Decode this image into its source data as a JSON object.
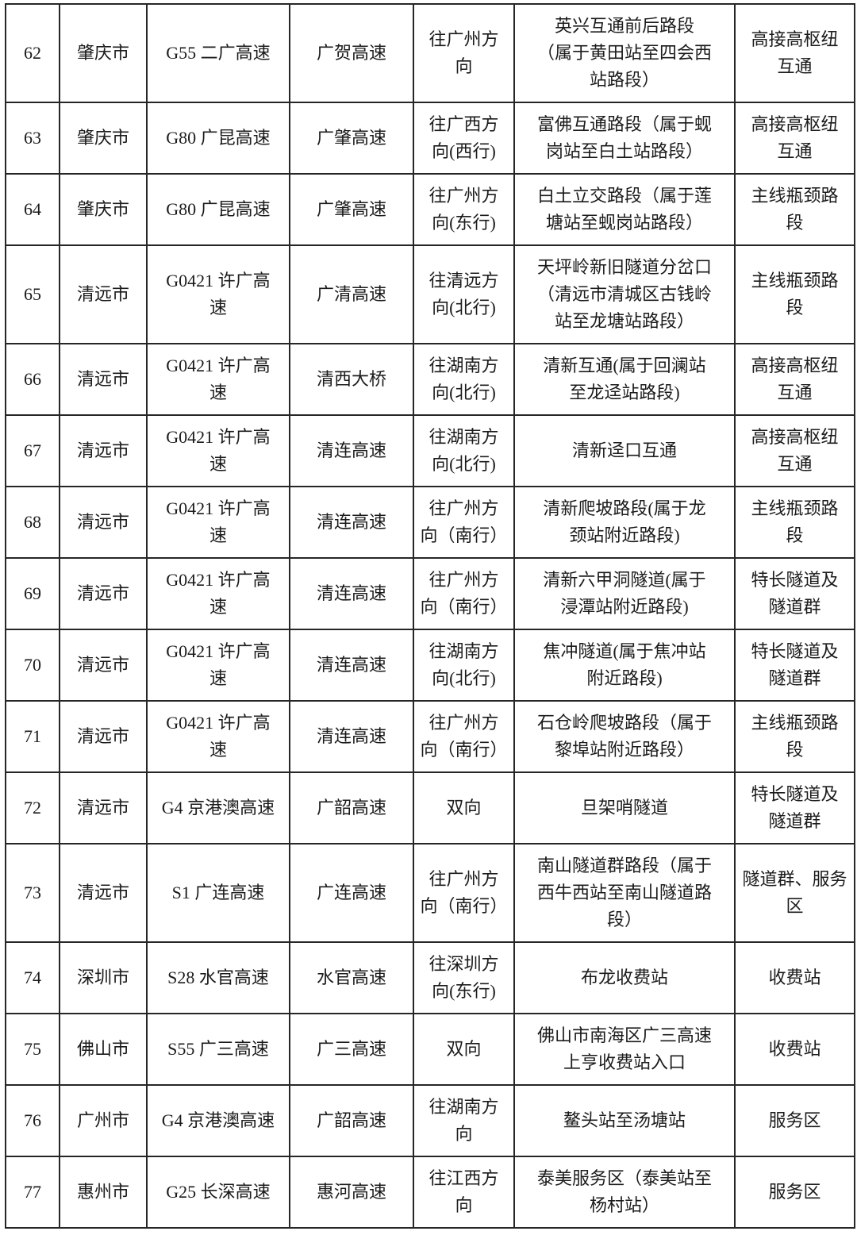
{
  "colors": {
    "border": "#262626",
    "text": "#1b1b1b",
    "background": "#ffffff"
  },
  "table": {
    "rows": [
      {
        "no": "62",
        "city": "肇庆市",
        "highway": "G55 二广高速",
        "road": "广贺高速",
        "direction": "往广州方\n向",
        "location": "英兴互通前后路段\n（属于黄田站至四会西\n站路段）",
        "type": "高接高枢纽\n互通"
      },
      {
        "no": "63",
        "city": "肇庆市",
        "highway": "G80 广昆高速",
        "road": "广肇高速",
        "direction": "往广西方\n向(西行)",
        "location": "富佛互通路段（属于蚬\n岗站至白土站路段）",
        "type": "高接高枢纽\n互通"
      },
      {
        "no": "64",
        "city": "肇庆市",
        "highway": "G80 广昆高速",
        "road": "广肇高速",
        "direction": "往广州方\n向(东行)",
        "location": "白土立交路段（属于莲\n塘站至蚬岗站路段）",
        "type": "主线瓶颈路\n段"
      },
      {
        "no": "65",
        "city": "清远市",
        "highway": "G0421 许广高\n速",
        "road": "广清高速",
        "direction": "往清远方\n向(北行)",
        "location": "天坪岭新旧隧道分岔口\n（清远市清城区古钱岭\n站至龙塘站路段）",
        "type": "主线瓶颈路\n段"
      },
      {
        "no": "66",
        "city": "清远市",
        "highway": "G0421 许广高\n速",
        "road": "清西大桥",
        "direction": "往湖南方\n向(北行)",
        "location": "清新互通(属于回澜站\n至龙迳站路段)",
        "type": "高接高枢纽\n互通"
      },
      {
        "no": "67",
        "city": "清远市",
        "highway": "G0421 许广高\n速",
        "road": "清连高速",
        "direction": "往湖南方\n向(北行)",
        "location": "清新迳口互通",
        "type": "高接高枢纽\n互通"
      },
      {
        "no": "68",
        "city": "清远市",
        "highway": "G0421 许广高\n速",
        "road": "清连高速",
        "direction": "往广州方\n向（南行）",
        "location": "清新爬坡路段(属于龙\n颈站附近路段)",
        "type": "主线瓶颈路\n段"
      },
      {
        "no": "69",
        "city": "清远市",
        "highway": "G0421 许广高\n速",
        "road": "清连高速",
        "direction": "往广州方\n向（南行）",
        "location": "清新六甲洞隧道(属于\n浸潭站附近路段)",
        "type": "特长隧道及\n隧道群"
      },
      {
        "no": "70",
        "city": "清远市",
        "highway": "G0421 许广高\n速",
        "road": "清连高速",
        "direction": "往湖南方\n向(北行)",
        "location": "焦冲隧道(属于焦冲站\n附近路段)",
        "type": "特长隧道及\n隧道群"
      },
      {
        "no": "71",
        "city": "清远市",
        "highway": "G0421 许广高\n速",
        "road": "清连高速",
        "direction": "往广州方\n向（南行）",
        "location": "石仓岭爬坡路段（属于\n黎埠站附近路段）",
        "type": "主线瓶颈路\n段"
      },
      {
        "no": "72",
        "city": "清远市",
        "highway": "G4 京港澳高速",
        "road": "广韶高速",
        "direction": "双向",
        "location": "旦架哨隧道",
        "type": "特长隧道及\n隧道群"
      },
      {
        "no": "73",
        "city": "清远市",
        "highway": "S1 广连高速",
        "road": "广连高速",
        "direction": "往广州方\n向（南行）",
        "location": "南山隧道群路段（属于\n西牛西站至南山隧道路\n段）",
        "type": "隧道群、服务\n区"
      },
      {
        "no": "74",
        "city": "深圳市",
        "highway": "S28 水官高速",
        "road": "水官高速",
        "direction": "往深圳方\n向(东行)",
        "location": "布龙收费站",
        "type": "收费站"
      },
      {
        "no": "75",
        "city": "佛山市",
        "highway": "S55 广三高速",
        "road": "广三高速",
        "direction": "双向",
        "location": "佛山市南海区广三高速\n上亨收费站入口",
        "type": "收费站"
      },
      {
        "no": "76",
        "city": "广州市",
        "highway": "G4 京港澳高速",
        "road": "广韶高速",
        "direction": "往湖南方\n向",
        "location": "鳌头站至汤塘站",
        "type": "服务区"
      },
      {
        "no": "77",
        "city": "惠州市",
        "highway": "G25 长深高速",
        "road": "惠河高速",
        "direction": "往江西方\n向",
        "location": "泰美服务区（泰美站至\n杨村站）",
        "type": "服务区"
      }
    ]
  }
}
